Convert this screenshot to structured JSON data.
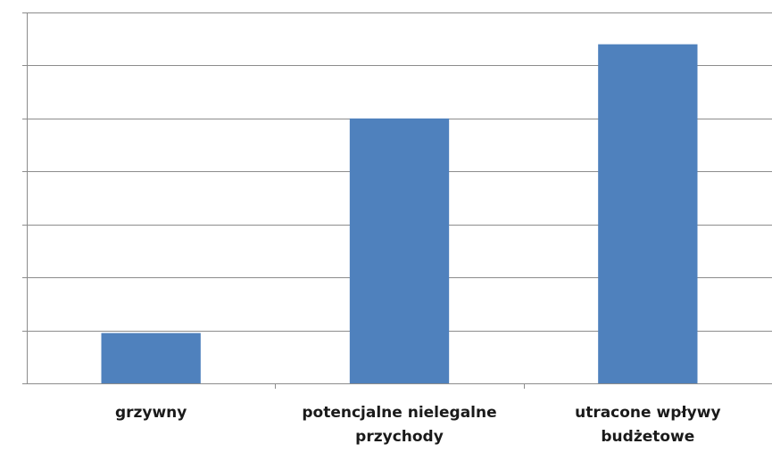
{
  "chart_data": {
    "type": "bar",
    "categories": [
      [
        "grzywny"
      ],
      [
        "potencjalne nielegalne",
        "przychody"
      ],
      [
        "utracone wpływy",
        "budżetowe"
      ]
    ],
    "values": [
      0.95,
      5.0,
      6.4
    ],
    "ylim": [
      0,
      7
    ],
    "ytick_step": 1,
    "grid": true,
    "show_y_tick_labels": false,
    "bar_color": "#4f81bd",
    "grid_color": "#8c8c8c",
    "axis_color": "#8c8c8c"
  }
}
